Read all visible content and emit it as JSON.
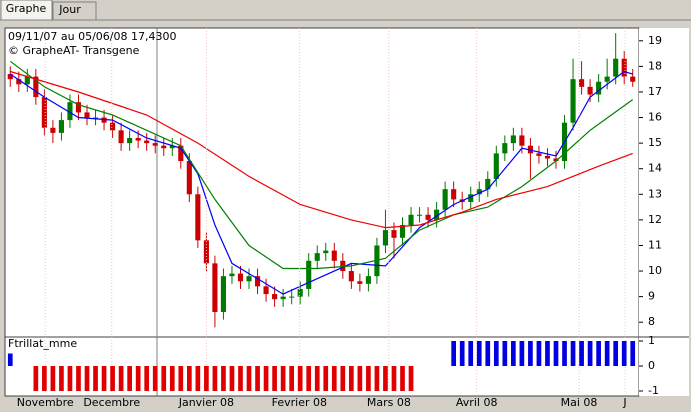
{
  "tabs": [
    "Graphe",
    "Jour"
  ],
  "chart_data": [
    {
      "type": "candlestick",
      "title": "09/11/07 au 05/06/08 17,4300",
      "subtitle": "© GrapheAT- Transgene",
      "up_color": "#007a00",
      "down_color": "#cc0000",
      "xlim": [
        -0.5,
        73.5
      ],
      "ylim": [
        7.5,
        19.5
      ],
      "yticks": [
        8,
        9,
        10,
        11,
        12,
        13,
        14,
        15,
        16,
        17,
        18,
        19
      ],
      "open": [
        17.7,
        17.5,
        17.3,
        17.6,
        16.8,
        15.6,
        15.4,
        15.9,
        16.6,
        16.2,
        16.0,
        16.0,
        15.8,
        15.5,
        15.0,
        15.2,
        15.1,
        15.0,
        14.9,
        14.8,
        14.9,
        14.3,
        13.0,
        11.2,
        10.3,
        8.4,
        9.8,
        9.9,
        9.6,
        9.8,
        9.4,
        9.1,
        8.9,
        9.0,
        9.0,
        9.3,
        10.4,
        10.7,
        10.8,
        10.4,
        10.0,
        9.6,
        9.5,
        9.8,
        11.0,
        11.6,
        11.3,
        11.8,
        12.2,
        12.2,
        12.0,
        12.4,
        13.2,
        12.8,
        12.7,
        13.0,
        13.2,
        13.6,
        14.6,
        15.0,
        15.3,
        14.9,
        14.6,
        14.5,
        14.4,
        14.3,
        15.8,
        17.5,
        17.2,
        16.9,
        17.4,
        17.6,
        18.3,
        17.6
      ],
      "close": [
        17.5,
        17.3,
        17.6,
        16.8,
        15.6,
        15.4,
        15.9,
        16.6,
        16.2,
        16.0,
        16.0,
        15.8,
        15.5,
        15.0,
        15.2,
        15.1,
        15.0,
        14.9,
        14.8,
        14.9,
        14.3,
        13.0,
        11.2,
        10.3,
        8.4,
        9.8,
        9.9,
        9.6,
        9.8,
        9.4,
        9.1,
        8.9,
        9.0,
        9.0,
        9.3,
        10.4,
        10.7,
        10.8,
        10.4,
        10.0,
        9.6,
        9.5,
        9.8,
        11.0,
        11.6,
        11.3,
        11.8,
        12.2,
        12.2,
        12.0,
        12.4,
        13.2,
        12.8,
        12.7,
        13.0,
        13.2,
        13.6,
        14.6,
        15.0,
        15.3,
        14.9,
        14.6,
        14.5,
        14.4,
        14.3,
        15.8,
        17.5,
        17.2,
        16.9,
        17.4,
        17.6,
        18.3,
        17.6,
        17.4
      ],
      "high": [
        18.0,
        17.8,
        17.9,
        17.9,
        17.1,
        15.9,
        16.2,
        16.9,
        16.9,
        16.5,
        16.3,
        16.3,
        16.1,
        15.8,
        15.5,
        15.5,
        15.4,
        15.3,
        15.2,
        15.2,
        15.2,
        14.6,
        13.3,
        11.5,
        10.6,
        10.1,
        10.2,
        10.2,
        10.1,
        10.1,
        9.7,
        9.4,
        9.3,
        9.3,
        9.6,
        10.7,
        11.0,
        11.1,
        11.1,
        10.7,
        10.3,
        9.9,
        10.1,
        11.3,
        12.4,
        11.9,
        12.1,
        12.5,
        12.5,
        12.5,
        12.7,
        13.5,
        13.5,
        13.1,
        13.3,
        13.5,
        13.9,
        14.9,
        15.3,
        15.6,
        15.6,
        15.2,
        14.9,
        14.8,
        14.7,
        16.1,
        18.3,
        18.2,
        17.5,
        17.7,
        18.3,
        19.3,
        18.6,
        17.9
      ],
      "low": [
        17.2,
        17.0,
        17.0,
        16.5,
        15.3,
        15.0,
        15.1,
        15.6,
        15.9,
        15.7,
        15.7,
        15.5,
        15.2,
        14.7,
        14.7,
        14.8,
        14.7,
        14.6,
        14.5,
        14.5,
        14.0,
        12.7,
        10.9,
        10.0,
        7.8,
        8.1,
        9.5,
        9.3,
        9.3,
        9.1,
        8.8,
        8.6,
        8.6,
        8.7,
        8.7,
        9.0,
        10.1,
        10.4,
        10.1,
        9.7,
        9.3,
        9.2,
        9.2,
        9.5,
        10.7,
        10.5,
        11.0,
        11.5,
        11.9,
        11.7,
        11.7,
        12.1,
        12.5,
        12.4,
        12.4,
        12.7,
        12.9,
        13.3,
        14.3,
        14.7,
        14.6,
        13.6,
        14.2,
        14.1,
        14.0,
        14.0,
        15.5,
        16.9,
        16.6,
        16.6,
        17.1,
        17.3,
        17.3,
        17.2
      ],
      "series": [
        {
          "color": "#0000ff",
          "x": [
            0,
            4,
            8,
            12,
            16,
            20,
            22,
            24,
            26,
            28,
            32,
            36,
            40,
            44,
            48,
            52,
            56,
            60,
            64,
            66,
            68,
            72,
            73
          ],
          "values": [
            17.7,
            16.8,
            16.0,
            15.9,
            15.2,
            14.8,
            13.8,
            11.8,
            10.3,
            9.9,
            9.1,
            9.7,
            10.3,
            10.2,
            11.7,
            12.6,
            13.2,
            14.8,
            14.5,
            15.6,
            16.8,
            17.8,
            17.7
          ]
        },
        {
          "color": "#008000",
          "x": [
            0,
            4,
            8,
            12,
            16,
            20,
            24,
            28,
            32,
            36,
            40,
            44,
            48,
            52,
            56,
            60,
            64,
            68,
            73
          ],
          "values": [
            18.2,
            17.2,
            16.5,
            16.1,
            15.5,
            14.9,
            12.8,
            11.0,
            10.1,
            10.1,
            10.2,
            10.5,
            11.6,
            12.2,
            12.5,
            13.3,
            14.3,
            15.5,
            16.7
          ]
        },
        {
          "color": "#ee0000",
          "x": [
            0,
            8,
            16,
            22,
            28,
            34,
            40,
            44,
            48,
            53,
            57,
            63,
            69,
            73
          ],
          "values": [
            17.8,
            17.0,
            16.1,
            15.0,
            13.7,
            12.6,
            12.0,
            11.7,
            11.8,
            12.3,
            12.8,
            13.3,
            14.1,
            14.6
          ]
        }
      ]
    },
    {
      "type": "bar",
      "title": "Ftrillat_mme",
      "positive_color": "#0000e0",
      "negative_color": "#e00000",
      "xlim": [
        -0.5,
        73.5
      ],
      "ylim": [
        -1.12,
        1.12
      ],
      "yticks": [
        1,
        0,
        -1
      ],
      "xgrid": true,
      "xticks": [
        {
          "value": 4.1,
          "label": "Novembre"
        },
        {
          "value": 11.9,
          "label": "Decembre"
        },
        {
          "value": 23,
          "label": "Janvier 08"
        },
        {
          "value": 33.9,
          "label": "Fevrier 08"
        },
        {
          "value": 44.4,
          "label": "Mars 08"
        },
        {
          "value": 54.7,
          "label": "Avril 08"
        },
        {
          "value": 66.7,
          "label": "Mai 08"
        },
        {
          "value": 72.1,
          "label": "J"
        }
      ],
      "values": [
        0.5,
        0,
        0,
        -1,
        -1,
        -1,
        -1,
        -1,
        -1,
        -1,
        -1,
        -1,
        -1,
        -1,
        -1,
        -1,
        -1,
        -1,
        -1,
        -1,
        -1,
        -1,
        -1,
        -1,
        -1,
        -1,
        -1,
        -1,
        -1,
        -1,
        -1,
        -1,
        -1,
        -1,
        -1,
        -1,
        -1,
        -1,
        -1,
        -1,
        -1,
        -1,
        -1,
        -1,
        -1,
        -1,
        -1,
        -1,
        0,
        0,
        0,
        0,
        1,
        1,
        1,
        1,
        1,
        1,
        1,
        1,
        1,
        1,
        1,
        1,
        1,
        1,
        1,
        1,
        1,
        1,
        1,
        1,
        1,
        1
      ]
    }
  ]
}
